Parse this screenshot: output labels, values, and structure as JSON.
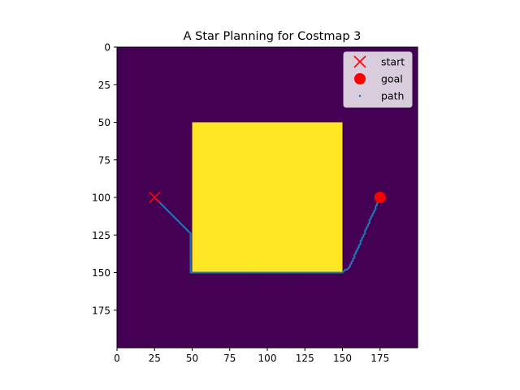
{
  "chart_data": {
    "type": "heatmap",
    "title": "A Star Planning for Costmap 3",
    "xlabel": "",
    "ylabel": "",
    "grid_size": [
      200,
      200
    ],
    "xlim": [
      0,
      200
    ],
    "ylim": [
      200,
      0
    ],
    "y_inverted": true,
    "x_ticks": [
      0,
      25,
      50,
      75,
      100,
      125,
      150,
      175
    ],
    "y_ticks": [
      0,
      25,
      50,
      75,
      100,
      125,
      150,
      175
    ],
    "grid": false,
    "colors": {
      "background": "#440154",
      "obstacle": "#fde725",
      "path": "#1f77b4",
      "start": "#ff0000",
      "goal": "#ff0000"
    },
    "obstacle": {
      "x_range": [
        50,
        150
      ],
      "y_range": [
        50,
        150
      ],
      "value": "high cost"
    },
    "start": {
      "x": 25,
      "y": 100
    },
    "goal": {
      "x": 175,
      "y": 100
    },
    "path_waypoints": [
      {
        "x": 25,
        "y": 100
      },
      {
        "x": 49,
        "y": 124
      },
      {
        "x": 49,
        "y": 150
      },
      {
        "x": 150,
        "y": 150
      },
      {
        "x": 155,
        "y": 146
      },
      {
        "x": 175,
        "y": 100
      }
    ],
    "legend": {
      "placement": "top-right",
      "entries": [
        {
          "label": "start",
          "marker": "x"
        },
        {
          "label": "goal",
          "marker": "circle"
        },
        {
          "label": "path",
          "marker": "dot"
        }
      ]
    }
  }
}
